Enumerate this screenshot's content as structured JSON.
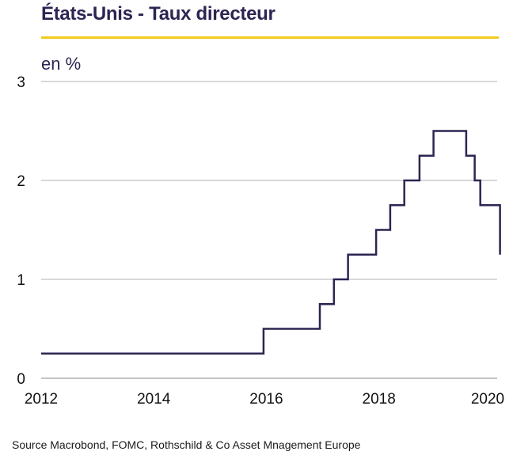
{
  "chart_data": {
    "type": "line",
    "title": "États-Unis - Taux directeur",
    "unit_label": "en %",
    "step": true,
    "xlim": [
      2012,
      2020.1
    ],
    "ylim": [
      0,
      3
    ],
    "x_ticks": [
      "2012",
      "2014",
      "2016",
      "2018",
      "2020"
    ],
    "y_ticks": [
      "0",
      "1",
      "2",
      "3"
    ],
    "grid": "horizontal",
    "series": [
      {
        "color": "#2e2452",
        "points": [
          [
            2012.0,
            0.25
          ],
          [
            2015.95,
            0.25
          ],
          [
            2015.95,
            0.5
          ],
          [
            2016.95,
            0.5
          ],
          [
            2016.95,
            0.75
          ],
          [
            2017.2,
            0.75
          ],
          [
            2017.2,
            1.0
          ],
          [
            2017.45,
            1.0
          ],
          [
            2017.45,
            1.25
          ],
          [
            2017.95,
            1.25
          ],
          [
            2017.95,
            1.5
          ],
          [
            2018.2,
            1.5
          ],
          [
            2018.2,
            1.75
          ],
          [
            2018.45,
            1.75
          ],
          [
            2018.45,
            2.0
          ],
          [
            2018.72,
            2.0
          ],
          [
            2018.72,
            2.25
          ],
          [
            2018.97,
            2.25
          ],
          [
            2018.97,
            2.5
          ],
          [
            2019.55,
            2.5
          ],
          [
            2019.55,
            2.25
          ],
          [
            2019.7,
            2.25
          ],
          [
            2019.7,
            2.0
          ],
          [
            2019.8,
            2.0
          ],
          [
            2019.8,
            1.75
          ],
          [
            2020.15,
            1.75
          ],
          [
            2020.15,
            1.25
          ]
        ]
      }
    ]
  },
  "footer": {
    "source": "Source Macrobond,  FOMC, Rothschild & Co Asset Mnagement  Europe"
  }
}
